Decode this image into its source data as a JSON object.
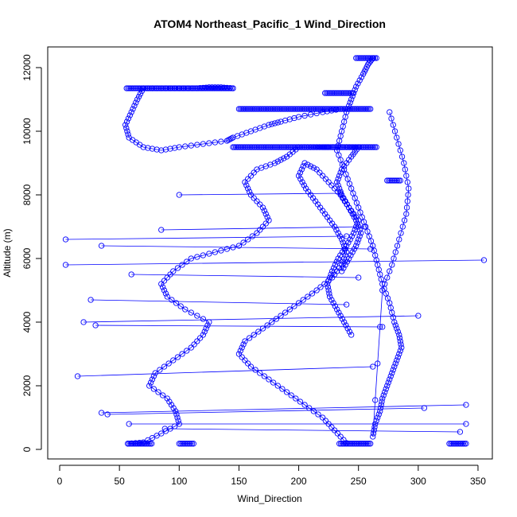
{
  "chart_data": {
    "type": "scatter",
    "title": "ATOM4 Northeast_Pacific_1 Wind_Direction",
    "xlabel": "Wind_Direction",
    "ylabel": "Altitude (m)",
    "xlim": [
      -10,
      362
    ],
    "ylim": [
      -300,
      12650
    ],
    "xticks": [
      0,
      50,
      100,
      150,
      200,
      250,
      300,
      350
    ],
    "yticks": [
      0,
      2000,
      4000,
      6000,
      8000,
      10000,
      12000
    ],
    "grid": false,
    "legend": "none",
    "style": "points connected by lines (open circles)",
    "color": "#0000ff",
    "series": [
      {
        "segment": "profile-left",
        "x": [
          57,
          70,
          85,
          100,
          97,
          90,
          75,
          80,
          95,
          110,
          120,
          125,
          105,
          90,
          85,
          95,
          110,
          130,
          150,
          165,
          175,
          170,
          160,
          155,
          165,
          180,
          190,
          200,
          210,
          220,
          225,
          240,
          250,
          244,
          236,
          232,
          236,
          242,
          250,
          246,
          240,
          233,
          228,
          224,
          226,
          232,
          238,
          244
        ],
        "y": [
          180,
          220,
          500,
          800,
          1200,
          1600,
          2000,
          2400,
          2800,
          3200,
          3600,
          4000,
          4400,
          4800,
          5200,
          5600,
          6000,
          6200,
          6400,
          6800,
          7200,
          7600,
          8000,
          8400,
          8800,
          9000,
          9200,
          9500,
          9500,
          9500,
          9500,
          9500,
          9500,
          9200,
          8800,
          8400,
          8000,
          7600,
          7200,
          6800,
          6400,
          6000,
          5600,
          5200,
          4800,
          4400,
          4000,
          3600
        ]
      },
      {
        "segment": "profile-upper-left",
        "x": [
          235,
          220,
          200,
          185,
          175,
          160,
          145,
          140,
          120,
          100,
          85,
          70,
          58,
          55,
          60,
          65,
          70,
          85,
          100,
          115,
          125,
          135,
          145
        ],
        "y": [
          10700,
          10600,
          10450,
          10300,
          10200,
          10000,
          9800,
          9700,
          9600,
          9500,
          9400,
          9500,
          9800,
          10200,
          10600,
          11000,
          11350,
          11350,
          11350,
          11350,
          11380,
          11380,
          11350
        ]
      },
      {
        "segment": "profile-right",
        "x": [
          262,
          258,
          254,
          248,
          244,
          240,
          236,
          232,
          238,
          244,
          250,
          256,
          262,
          266,
          270,
          276,
          280,
          284,
          286,
          282,
          278,
          274,
          270,
          268,
          264,
          262,
          270,
          278,
          284,
          290,
          292,
          288,
          282,
          276
        ],
        "y": [
          12300,
          12100,
          11800,
          11400,
          11000,
          10600,
          10000,
          9400,
          8800,
          8200,
          7600,
          7000,
          6400,
          5800,
          5200,
          4600,
          4000,
          3600,
          3200,
          2800,
          2400,
          2000,
          1600,
          1200,
          800,
          400,
          5000,
          5800,
          6600,
          7400,
          8200,
          9000,
          9800,
          10600
        ]
      },
      {
        "segment": "profile-center",
        "x": [
          240,
          230,
          220,
          205,
          190,
          175,
          160,
          150,
          155,
          170,
          185,
          200,
          215,
          228,
          236,
          240,
          236,
          230,
          222,
          214,
          206,
          200,
          205,
          215,
          225,
          235,
          242,
          248,
          252,
          248,
          242,
          236
        ],
        "y": [
          200,
          600,
          1000,
          1400,
          1800,
          2200,
          2600,
          3000,
          3400,
          3800,
          4200,
          4600,
          5000,
          5400,
          5800,
          6200,
          6600,
          7000,
          7400,
          7800,
          8200,
          8600,
          9000,
          8800,
          8400,
          8000,
          7600,
          7200,
          6800,
          6400,
          6000,
          5600
        ]
      }
    ],
    "horizontal_runs": [
      {
        "y": 11350,
        "x": [
          56,
          145
        ]
      },
      {
        "y": 10700,
        "x": [
          150,
          260
        ]
      },
      {
        "y": 9500,
        "x": [
          145,
          265
        ]
      },
      {
        "y": 12300,
        "x": [
          248,
          265
        ]
      },
      {
        "y": 11200,
        "x": [
          222,
          245
        ]
      },
      {
        "y": 8450,
        "x": [
          274,
          285
        ]
      },
      {
        "y": 180,
        "x": [
          57,
          77
        ]
      },
      {
        "y": 180,
        "x": [
          100,
          112
        ]
      },
      {
        "y": 180,
        "x": [
          234,
          260
        ]
      },
      {
        "y": 180,
        "x": [
          326,
          340
        ]
      }
    ],
    "horizontal_excursions": [
      {
        "x": [
          5,
          240
        ],
        "y": [
          6600,
          6700
        ]
      },
      {
        "x": [
          35,
          260
        ],
        "y": [
          6400,
          6300
        ]
      },
      {
        "x": [
          5,
          355
        ],
        "y": [
          5800,
          5950
        ]
      },
      {
        "x": [
          26,
          240
        ],
        "y": [
          4700,
          4550
        ]
      },
      {
        "x": [
          20,
          300
        ],
        "y": [
          4000,
          4200
        ]
      },
      {
        "x": [
          15,
          262
        ],
        "y": [
          2300,
          2600
        ]
      },
      {
        "x": [
          35,
          340
        ],
        "y": [
          1150,
          1400
        ]
      },
      {
        "x": [
          58,
          340
        ],
        "y": [
          800,
          800
        ]
      },
      {
        "x": [
          88,
          335
        ],
        "y": [
          650,
          550
        ]
      },
      {
        "x": [
          40,
          305
        ],
        "y": [
          1100,
          1300
        ]
      },
      {
        "x": [
          30,
          270
        ],
        "y": [
          3900,
          3850
        ]
      },
      {
        "x": [
          60,
          250
        ],
        "y": [
          5500,
          5400
        ]
      },
      {
        "x": [
          85,
          255
        ],
        "y": [
          6900,
          7000
        ]
      },
      {
        "x": [
          100,
          235
        ],
        "y": [
          8000,
          8050
        ]
      }
    ]
  }
}
